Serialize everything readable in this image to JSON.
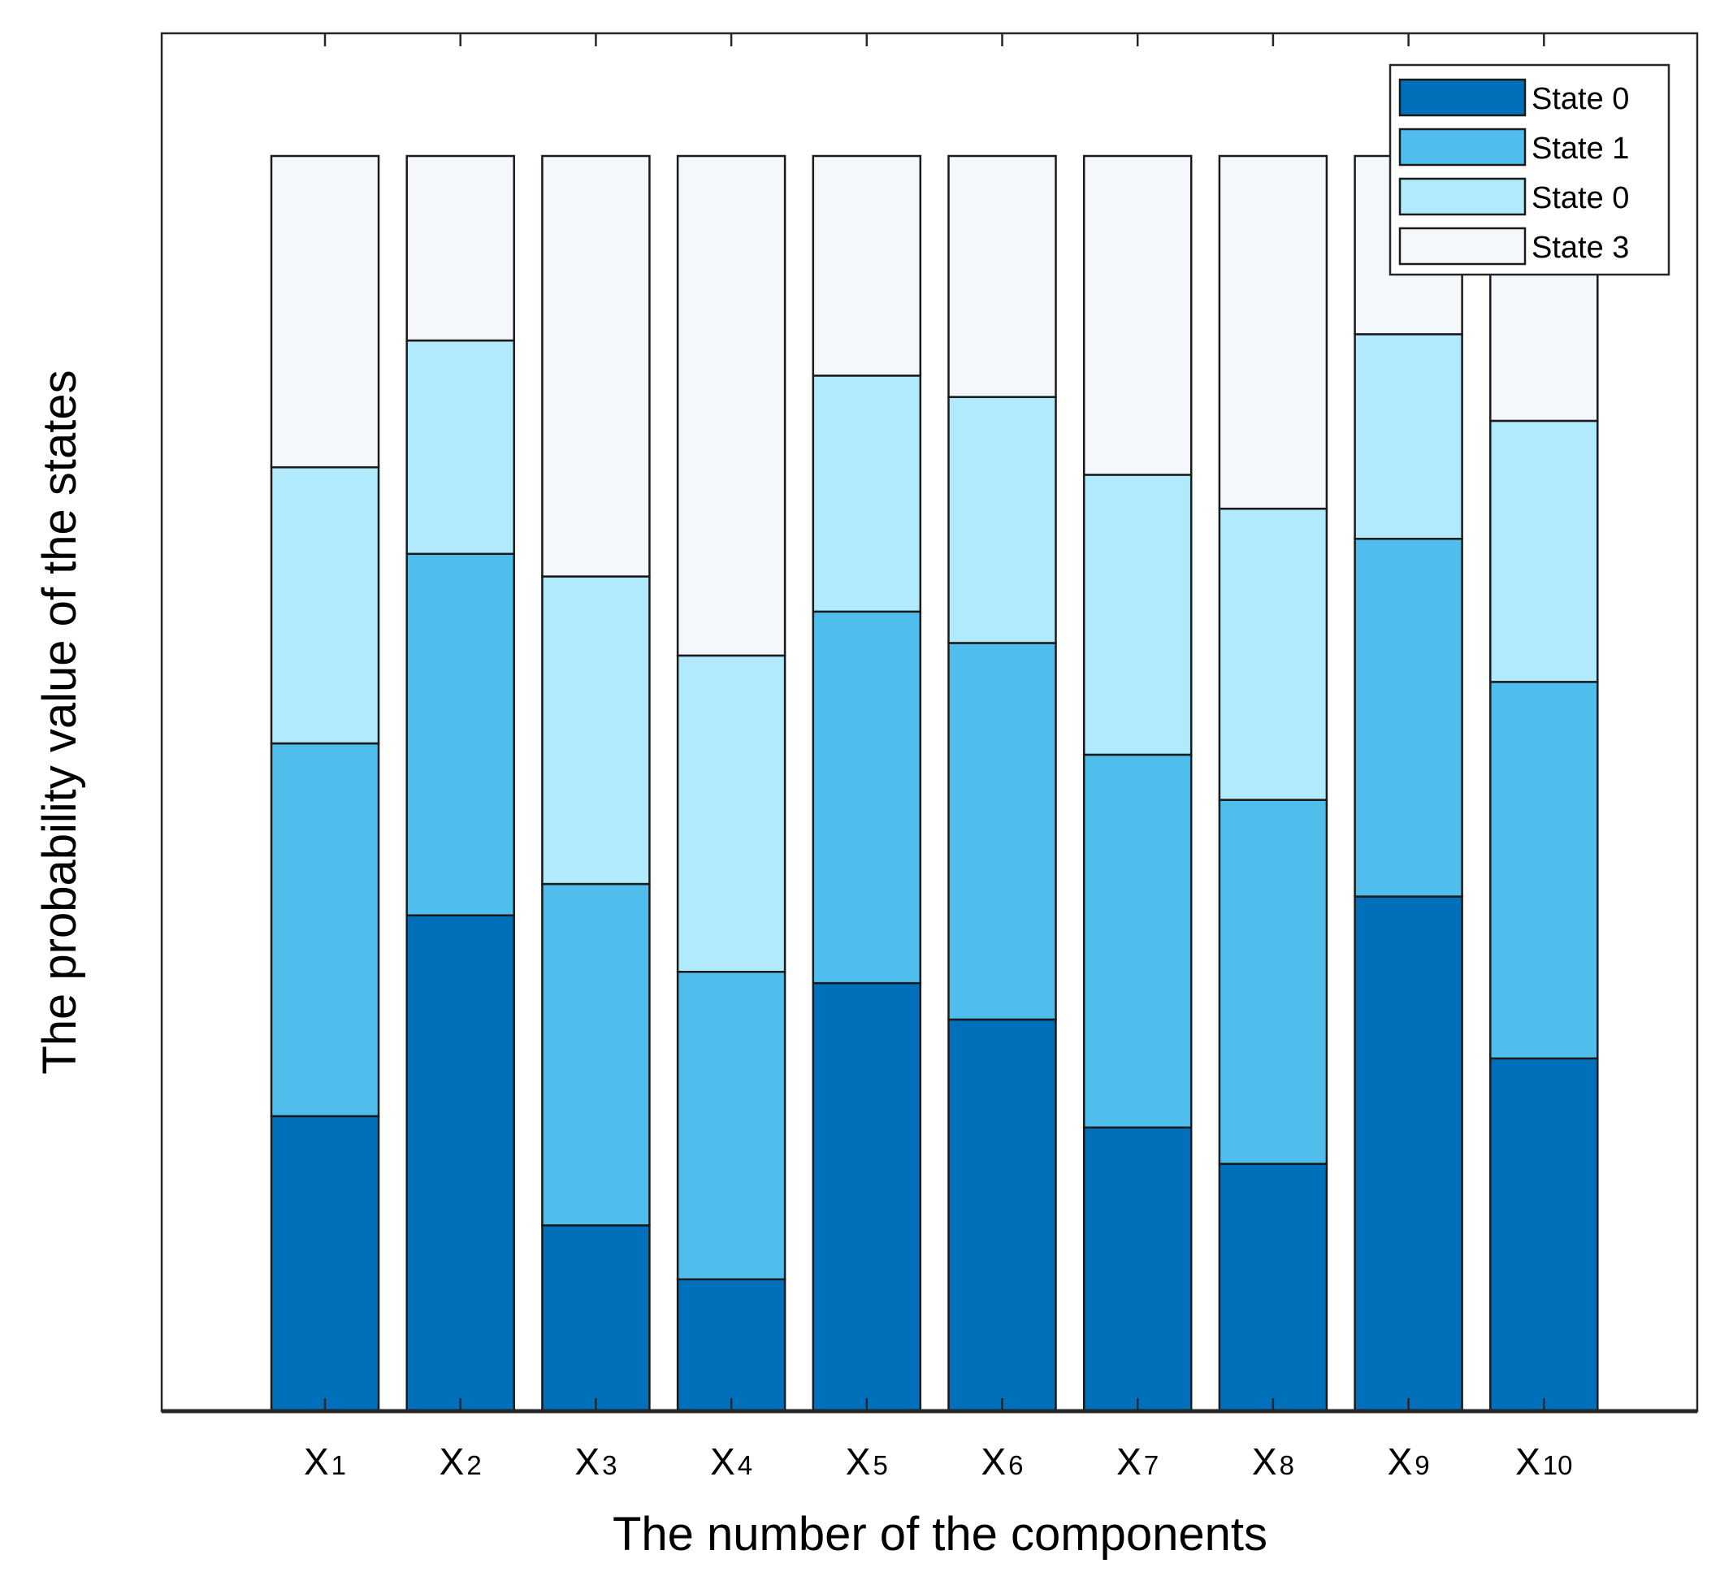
{
  "chart_data": {
    "type": "bar",
    "stacked": true,
    "title": "",
    "xlabel": "The number of the components",
    "ylabel": "The probability value of the states",
    "ylim": [
      0,
      1.1
    ],
    "grid": false,
    "legend_position": "top-right",
    "categories": [
      {
        "base": "X",
        "sub": "1"
      },
      {
        "base": "X",
        "sub": "2"
      },
      {
        "base": "X",
        "sub": "3"
      },
      {
        "base": "X",
        "sub": "4"
      },
      {
        "base": "X",
        "sub": "5"
      },
      {
        "base": "X",
        "sub": "6"
      },
      {
        "base": "X",
        "sub": "7"
      },
      {
        "base": "X",
        "sub": "8"
      },
      {
        "base": "X",
        "sub": "9"
      },
      {
        "base": "X",
        "sub": "10"
      }
    ],
    "series": [
      {
        "name": "State 0",
        "color": "#0070BB",
        "values": [
          0.235,
          0.395,
          0.148,
          0.105,
          0.341,
          0.312,
          0.226,
          0.197,
          0.41,
          0.281
        ]
      },
      {
        "name": "State 1",
        "color": "#4FBEEC",
        "values": [
          0.297,
          0.288,
          0.272,
          0.245,
          0.296,
          0.3,
          0.297,
          0.29,
          0.285,
          0.3
        ]
      },
      {
        "name": "State 0",
        "color": "#B0EAFC",
        "values": [
          0.22,
          0.17,
          0.245,
          0.252,
          0.188,
          0.196,
          0.223,
          0.232,
          0.163,
          0.208
        ]
      },
      {
        "name": "State 3",
        "color": "#F4F8FC",
        "values": [
          0.248,
          0.147,
          0.335,
          0.398,
          0.175,
          0.192,
          0.254,
          0.281,
          0.142,
          0.211
        ]
      }
    ]
  }
}
